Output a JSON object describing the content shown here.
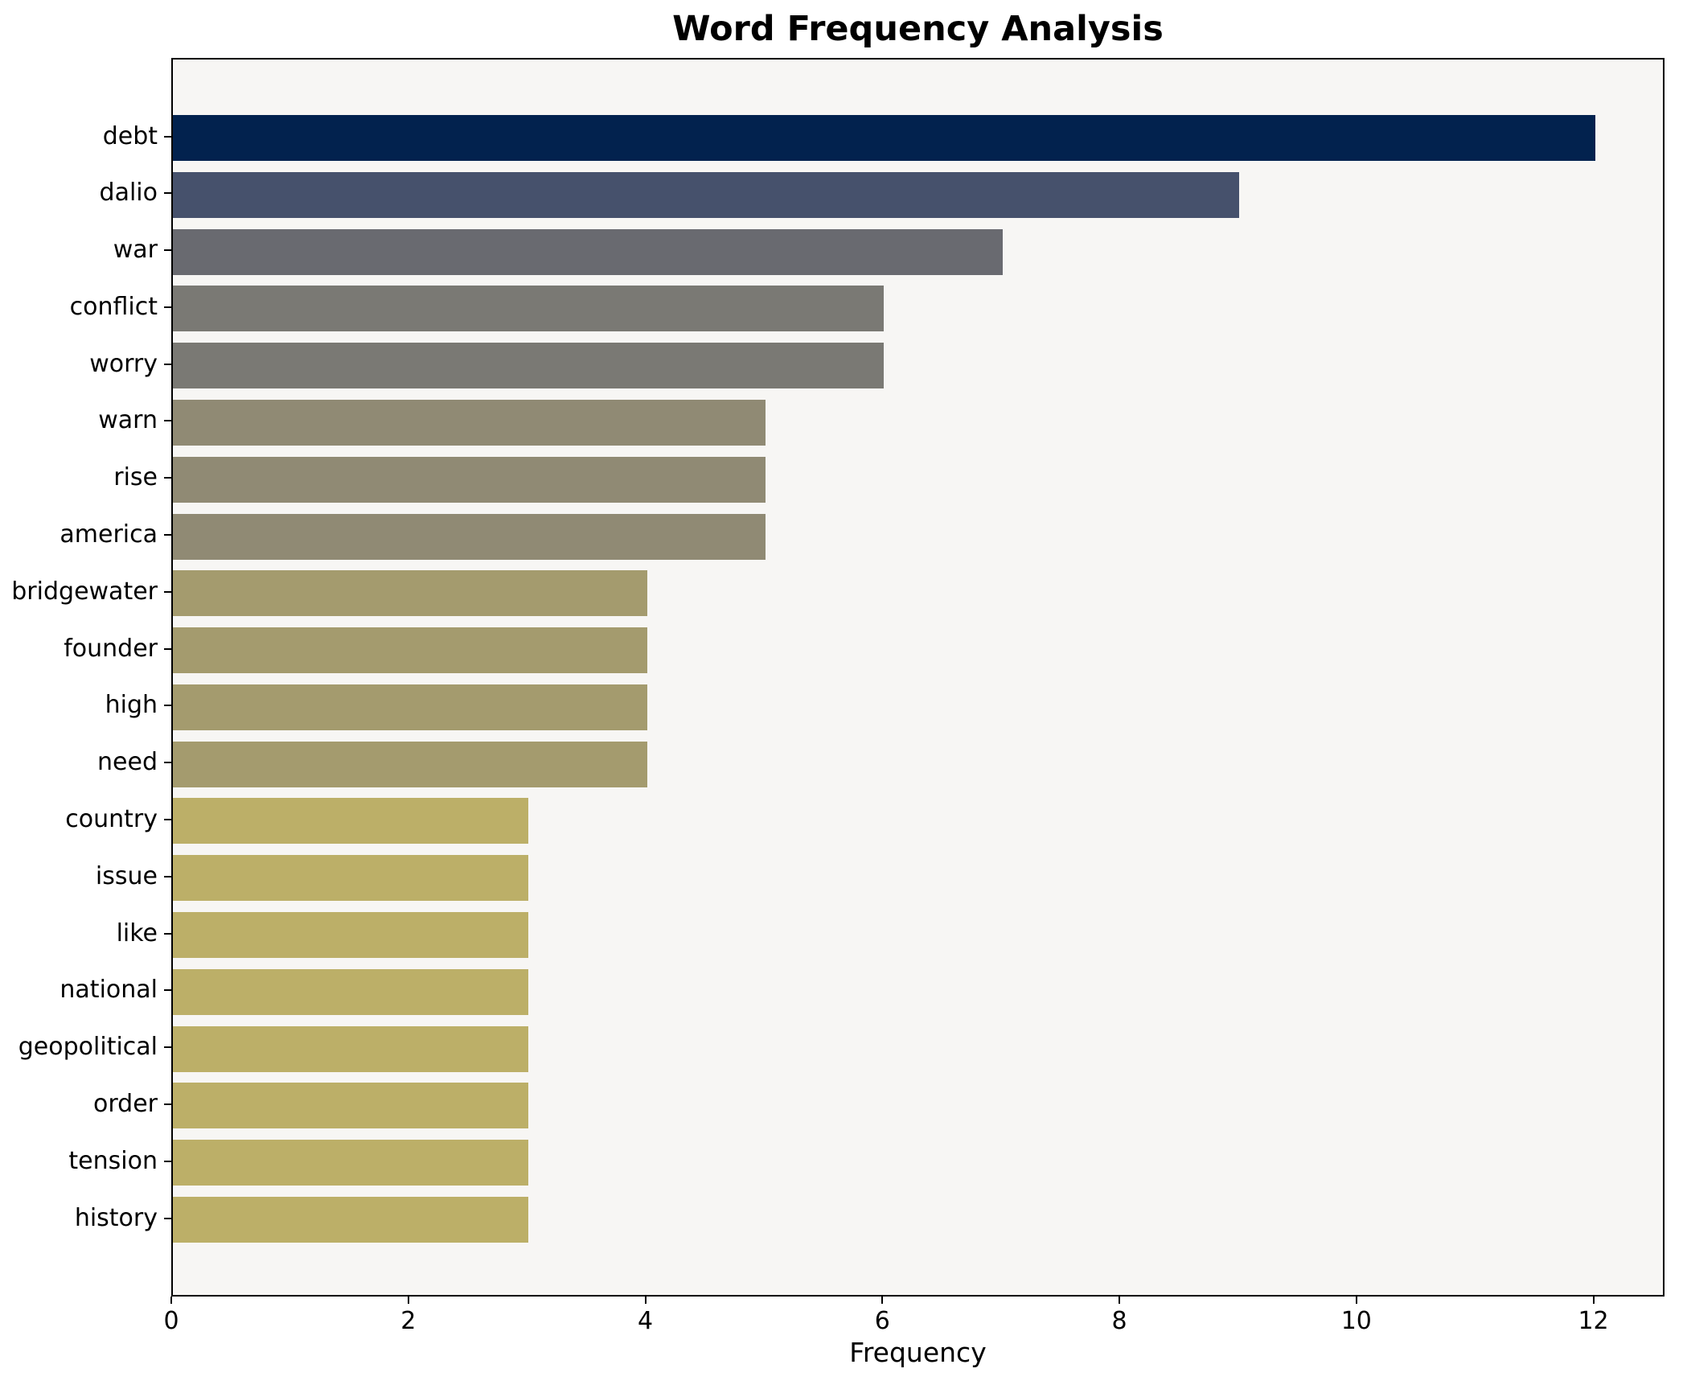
{
  "title": "Word Frequency Analysis",
  "chart_data": {
    "type": "bar",
    "orientation": "horizontal",
    "title": "Word Frequency Analysis",
    "xlabel": "Frequency",
    "ylabel": "",
    "categories": [
      "debt",
      "dalio",
      "war",
      "conflict",
      "worry",
      "warn",
      "rise",
      "america",
      "bridgewater",
      "founder",
      "high",
      "need",
      "country",
      "issue",
      "like",
      "national",
      "geopolitical",
      "order",
      "tension",
      "history"
    ],
    "values": [
      12,
      9,
      7,
      6,
      6,
      5,
      5,
      5,
      4,
      4,
      4,
      4,
      3,
      3,
      3,
      3,
      3,
      3,
      3,
      3
    ],
    "bar_colors": [
      "#02224e",
      "#46516c",
      "#696a70",
      "#7a7974",
      "#7a7974",
      "#908a74",
      "#908a74",
      "#908a74",
      "#a49b6e",
      "#a49b6e",
      "#a49b6e",
      "#a49b6e",
      "#bcaf68",
      "#bcaf68",
      "#bcaf68",
      "#bcaf68",
      "#bcaf68",
      "#bcaf68",
      "#bcaf68",
      "#bcaf68"
    ],
    "xticks": [
      0,
      2,
      4,
      6,
      8,
      10,
      12
    ],
    "xlim": [
      0,
      12.6
    ],
    "grid": false,
    "legend": null,
    "colors": {
      "plot_background": "#f7f6f4",
      "figure_background": "#ffffff",
      "spine": "#000000",
      "text": "#000000"
    }
  }
}
